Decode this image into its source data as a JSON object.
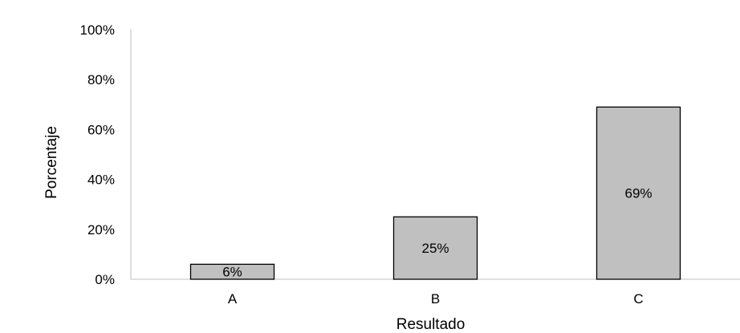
{
  "chart_data": {
    "type": "bar",
    "title": "",
    "xlabel": "Resultado",
    "ylabel": "Porcentaje",
    "categories": [
      "A",
      "B",
      "C"
    ],
    "values": [
      6,
      25,
      69
    ],
    "data_labels": [
      "6%",
      "25%",
      "69%"
    ],
    "ylim": [
      0,
      100
    ],
    "yticks": [
      0,
      20,
      40,
      60,
      80,
      100
    ],
    "ytick_labels": [
      "0%",
      "20%",
      "40%",
      "60%",
      "80%",
      "100%"
    ],
    "grid": false,
    "legend": "none",
    "bar_color": "#c0c0c0",
    "bar_edge_color": "#000000"
  }
}
